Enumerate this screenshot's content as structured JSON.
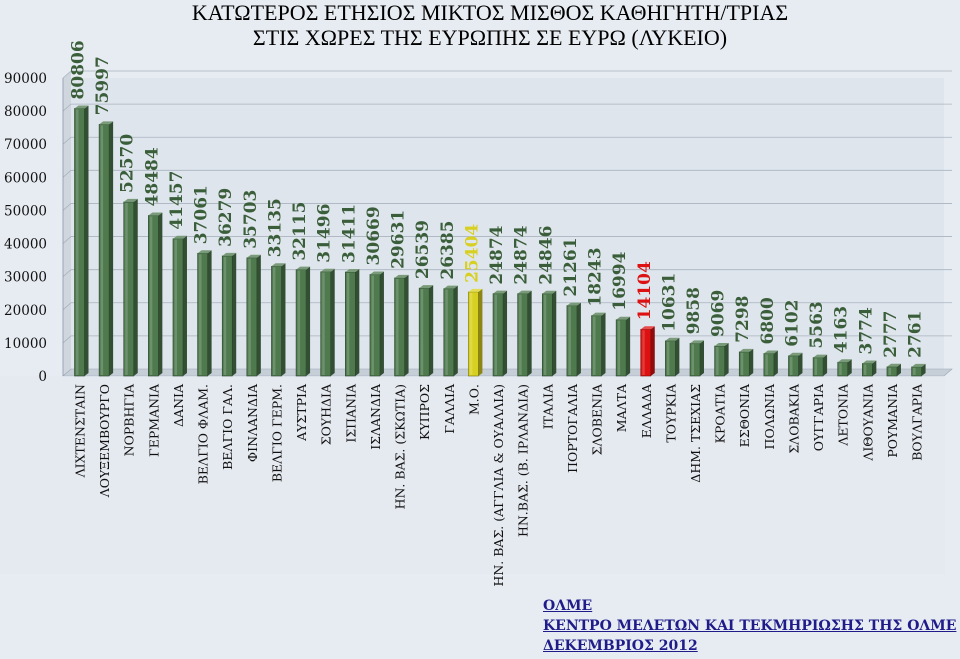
{
  "chart_data": {
    "type": "bar",
    "title_lines": [
      "ΚΑΤΩΤΕΡΟΣ ΕΤΗΣΙΟΣ ΜΙΚΤΟΣ ΜΙΣΘΟΣ ΚΑΘΗΓΗΤΗ/ΤΡΙΑΣ",
      "ΣΤΙΣ ΧΩΡΕΣ ΤΗΣ ΕΥΡΩΠΗΣ ΣΕ ΕΥΡΩ (ΛΥΚΕΙΟ)"
    ],
    "xlabel": "",
    "ylabel": "",
    "ylim": [
      0,
      90000
    ],
    "yticks": [
      "0",
      "10000",
      "20000",
      "30000",
      "40000",
      "50000",
      "60000",
      "70000",
      "80000",
      "90000"
    ],
    "grid": true,
    "categories": [
      "ΛΙΧΤΕΝΣΤΑΙΝ",
      "ΛΟΥΞΕΜΒΟΥΡΓΟ",
      "ΝΟΡΒΗΓΙΑ",
      "ΓΕΡΜΑΝΙΑ",
      "ΔΑΝΙΑ",
      "ΒΕΛΓΙΟ ΦΛΑΜ.",
      "ΒΕΛΓΙΟ ΓΑΛ.",
      "ΦΙΝΛΑΝΔΙΑ",
      "ΒΕΛΓΙΟ ΓΕΡΜ.",
      "ΑΥΣΤΡΙΑ",
      "ΣΟΥΗΔΙΑ",
      "ΙΣΠΑΝΙΑ",
      "ΙΣΛΑΝΔΙΑ",
      "ΗΝ. ΒΑΣ. (ΣΚΩΤΙΑ)",
      "ΚΥΠΡΟΣ",
      "ΓΑΛΛΙΑ",
      "Μ.Ο.",
      "ΗΝ. ΒΑΣ. (ΑΓΓΛΙΑ & ΟΥΑΛΛΙΑ)",
      "ΗΝ.ΒΑΣ. (Β. ΙΡΛΑΝΔΙΑ)",
      "ΙΤΑΛΙΑ",
      "ΠΟΡΤΟΓΑΛΙΑ",
      "ΣΛΟΒΕΝΙΑ",
      "ΜΑΛΤΑ",
      "ΕΛΛΑΔΑ",
      "ΤΟΥΡΚΙΑ",
      "ΔΗΜ. ΤΣΕΧΙΑΣ",
      "ΚΡΟΑΤΙΑ",
      "ΕΣΘΟΝΙΑ",
      "ΠΟΛΩΝΙΑ",
      "ΣΛΟΒΑΚΙΑ",
      "ΟΥΓΓΑΡΙΑ",
      "ΛΕΤΟΝΙΑ",
      "ΛΙΘΟΥΑΝΙΑ",
      "ΡΟΥΜΑΝΙΑ",
      "ΒΟΥΛΓΑΡΙΑ"
    ],
    "values": [
      80806,
      75997,
      52570,
      48484,
      41457,
      37061,
      36279,
      35703,
      33135,
      32115,
      31496,
      31411,
      30669,
      29631,
      26539,
      26385,
      25404,
      24874,
      24874,
      24846,
      21261,
      18243,
      16994,
      14104,
      10631,
      9858,
      9069,
      7298,
      6800,
      6102,
      5563,
      4163,
      3774,
      2777,
      2761
    ],
    "highlights": {
      "Μ.Ο.": "#d8d020",
      "ΕΛΛΑΔΑ": "#dd1111"
    },
    "colors": {
      "bar": "#4e7a4e",
      "background": "#e7ecf2",
      "plot": "#dfe5ec",
      "average": "#d8d020",
      "greece": "#dd1111",
      "label": "#3a5e3a"
    }
  },
  "credits": {
    "org": "ΟΛΜΕ",
    "dept": "ΚΕΝΤΡΟ ΜΕΛΕΤΩΝ ΚΑΙ ΤΕΚΜΗΡΙΩΣΗΣ ΤΗΣ ΟΛΜΕ",
    "date": "ΔΕΚΕΜΒΡΙΟΣ 2012"
  }
}
